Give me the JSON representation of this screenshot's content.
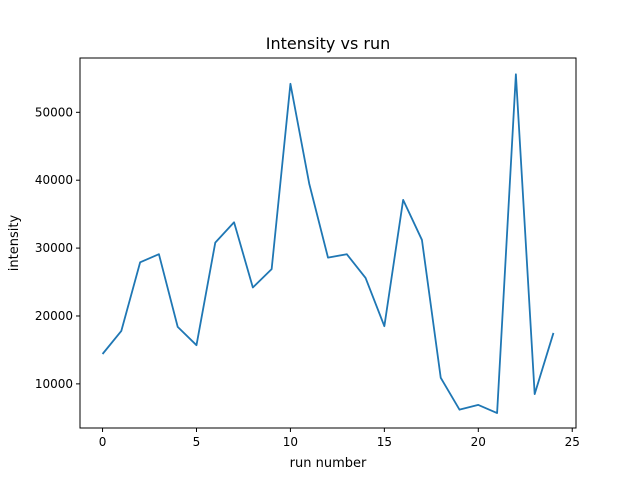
{
  "chart_data": {
    "type": "line",
    "title": "Intensity vs run",
    "xlabel": "run number",
    "ylabel": "intensity",
    "grid": false,
    "line_color": "#1f77b4",
    "xlim": [
      -1.2,
      25.2
    ],
    "ylim": [
      3500,
      58000
    ],
    "x_ticks": [
      0,
      5,
      10,
      15,
      20,
      25
    ],
    "x_tick_labels": [
      "0",
      "5",
      "10",
      "15",
      "20",
      "25"
    ],
    "y_ticks": [
      10000,
      20000,
      30000,
      40000,
      50000
    ],
    "y_tick_labels": [
      "10000",
      "20000",
      "30000",
      "40000",
      "50000"
    ],
    "x": [
      0,
      1,
      2,
      3,
      4,
      5,
      6,
      7,
      8,
      9,
      10,
      11,
      12,
      13,
      14,
      15,
      16,
      17,
      18,
      19,
      20,
      21,
      22,
      23,
      24
    ],
    "series": [
      {
        "values": [
          14400,
          17800,
          27900,
          29100,
          18400,
          15700,
          30800,
          33800,
          24200,
          26900,
          54200,
          39500,
          28600,
          29100,
          25600,
          18500,
          37100,
          31200,
          10900,
          6200,
          6900,
          5700,
          55600,
          8500,
          17500
        ]
      }
    ]
  }
}
